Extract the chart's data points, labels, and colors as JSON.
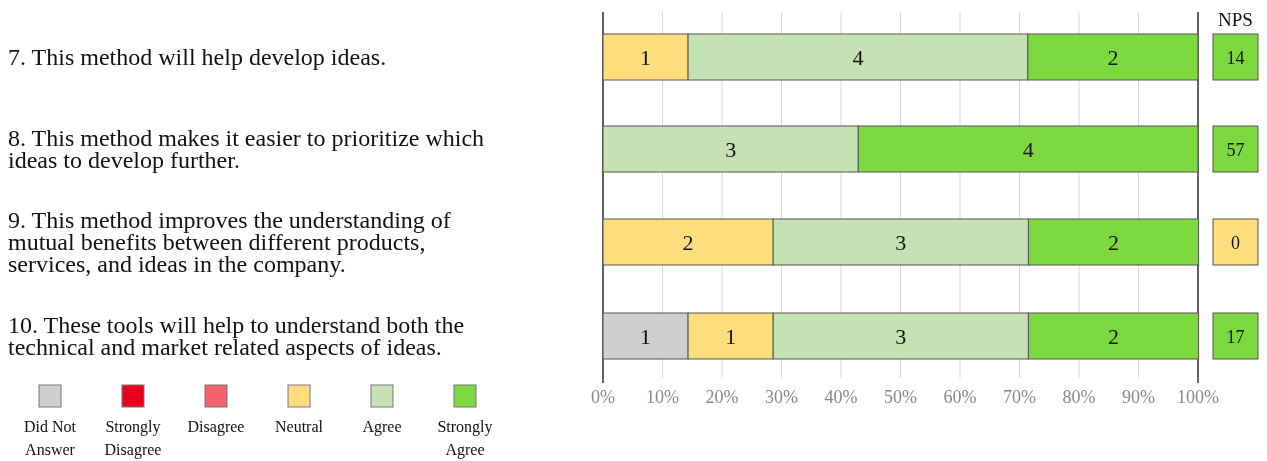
{
  "chart_data": [
    {
      "type": "bar",
      "orientation": "horizontal",
      "stacked": true,
      "categories": [
        "7. This method will help develop ideas.",
        "8. This method makes it easier to prioritize which ideas to develop further.",
        "9. This method improves the understanding of mutual benefits between different products, services, and ideas in the company.",
        "10. These tools will help to understand both the technical and market related aspects of ideas."
      ],
      "series": [
        {
          "name": "Did Not Answer",
          "color": "#d0cecf",
          "values": [
            null,
            null,
            null,
            14.3
          ]
        },
        {
          "name": "Strongly Disagree",
          "color": "#e8001c",
          "values": [
            null,
            null,
            null,
            null
          ]
        },
        {
          "name": "Disagree",
          "color": "#f2616d",
          "values": [
            null,
            null,
            null,
            null
          ]
        },
        {
          "name": "Neutral",
          "color": "#fede7c",
          "values": [
            14.3,
            null,
            28.6,
            14.3
          ]
        },
        {
          "name": "Agree",
          "color": "#c6e1b4",
          "values": [
            57.1,
            42.9,
            42.9,
            42.9
          ]
        },
        {
          "name": "Strongly Agree",
          "color": "#7ed940",
          "values": [
            28.6,
            57.1,
            28.6,
            28.6
          ]
        }
      ],
      "annotations": [
        "1",
        "4",
        "2",
        "3",
        "4",
        "2",
        "3",
        "2",
        "1",
        "1",
        "3",
        "2"
      ],
      "xlim": [
        0,
        100
      ],
      "xticks": [
        {
          "value": 0,
          "label": "0%"
        },
        {
          "value": 10,
          "label": "10%"
        },
        {
          "value": 20,
          "label": "20%"
        },
        {
          "value": 30,
          "label": "30%"
        },
        {
          "value": 40,
          "label": "40%"
        },
        {
          "value": 50,
          "label": "50%"
        },
        {
          "value": 60,
          "label": "60%"
        },
        {
          "value": 70,
          "label": "70%"
        },
        {
          "value": 80,
          "label": "80%"
        },
        {
          "value": 90,
          "label": "90%"
        },
        {
          "value": 100,
          "label": "100%"
        }
      ],
      "grid": "x",
      "legend": "bottom left"
    },
    {
      "type": "other",
      "title": "NPS",
      "categories": [
        null,
        null,
        null,
        null
      ],
      "values": [
        14,
        57,
        0,
        17
      ],
      "colors": [
        "#7ed940",
        "#7ed940",
        "#fede7c",
        "#7ed940"
      ],
      "data_labels": true
    }
  ]
}
